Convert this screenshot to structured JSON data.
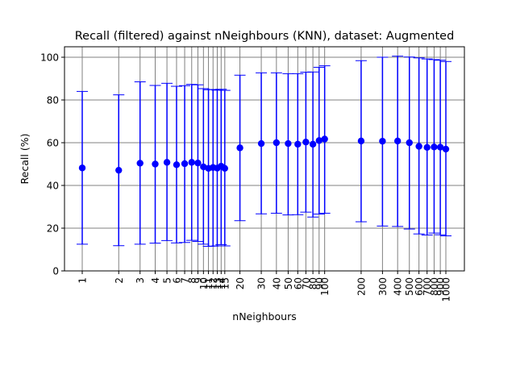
{
  "chart_data": {
    "type": "scatter",
    "title": "Recall (filtered) against nNeighbours (KNN), dataset: Augmented",
    "xlabel": "nNeighbours",
    "ylabel": "Recall (%)",
    "x_scale": "log",
    "ylim": [
      0,
      104
    ],
    "yticks": [
      0,
      20,
      40,
      60,
      80,
      100
    ],
    "grid": true,
    "color": "#0000ff",
    "grid_color": "#808080",
    "x": [
      1,
      2,
      3,
      4,
      5,
      6,
      7,
      8,
      9,
      10,
      11,
      12,
      13,
      14,
      15,
      20,
      30,
      40,
      50,
      60,
      70,
      80,
      90,
      100,
      200,
      300,
      400,
      500,
      600,
      700,
      800,
      900,
      1000
    ],
    "x_tick_labels": [
      "1",
      "2",
      "3",
      "4",
      "5",
      "6",
      "7",
      "8",
      "9",
      "10",
      "11",
      "12",
      "13",
      "14",
      "15",
      "20",
      "30",
      "40",
      "50",
      "60",
      "70",
      "80",
      "90",
      "100",
      "200",
      "300",
      "400",
      "500",
      "600",
      "700",
      "800",
      "900",
      "1000"
    ],
    "y_mean": [
      48.2,
      47.1,
      50.4,
      50.0,
      50.8,
      49.7,
      50.2,
      50.8,
      50.5,
      48.7,
      48.0,
      48.4,
      48.1,
      49.0,
      48.0,
      57.6,
      59.6,
      60.0,
      59.6,
      59.3,
      60.3,
      59.3,
      61.0,
      61.7,
      60.8,
      60.7,
      60.8,
      60.0,
      58.3,
      57.8,
      58.0,
      57.9,
      57.0
    ],
    "y_lower": [
      12.5,
      11.8,
      12.5,
      13.0,
      14.2,
      13.1,
      13.3,
      14.3,
      13.8,
      12.5,
      11.5,
      11.6,
      11.7,
      12.3,
      11.7,
      23.5,
      26.7,
      27.0,
      26.2,
      26.3,
      27.5,
      25.2,
      26.6,
      27.0,
      23.0,
      21.0,
      20.8,
      19.6,
      17.3,
      16.8,
      17.7,
      16.9,
      16.4
    ],
    "y_upper": [
      84.0,
      82.4,
      88.5,
      86.8,
      87.8,
      86.4,
      86.7,
      87.3,
      87.1,
      85.3,
      84.8,
      84.9,
      84.6,
      85.0,
      84.5,
      91.6,
      92.7,
      92.7,
      92.3,
      92.3,
      93.0,
      93.1,
      95.3,
      96.0,
      98.4,
      100.0,
      100.5,
      100.1,
      99.7,
      99.2,
      98.9,
      98.6,
      98.0
    ]
  }
}
